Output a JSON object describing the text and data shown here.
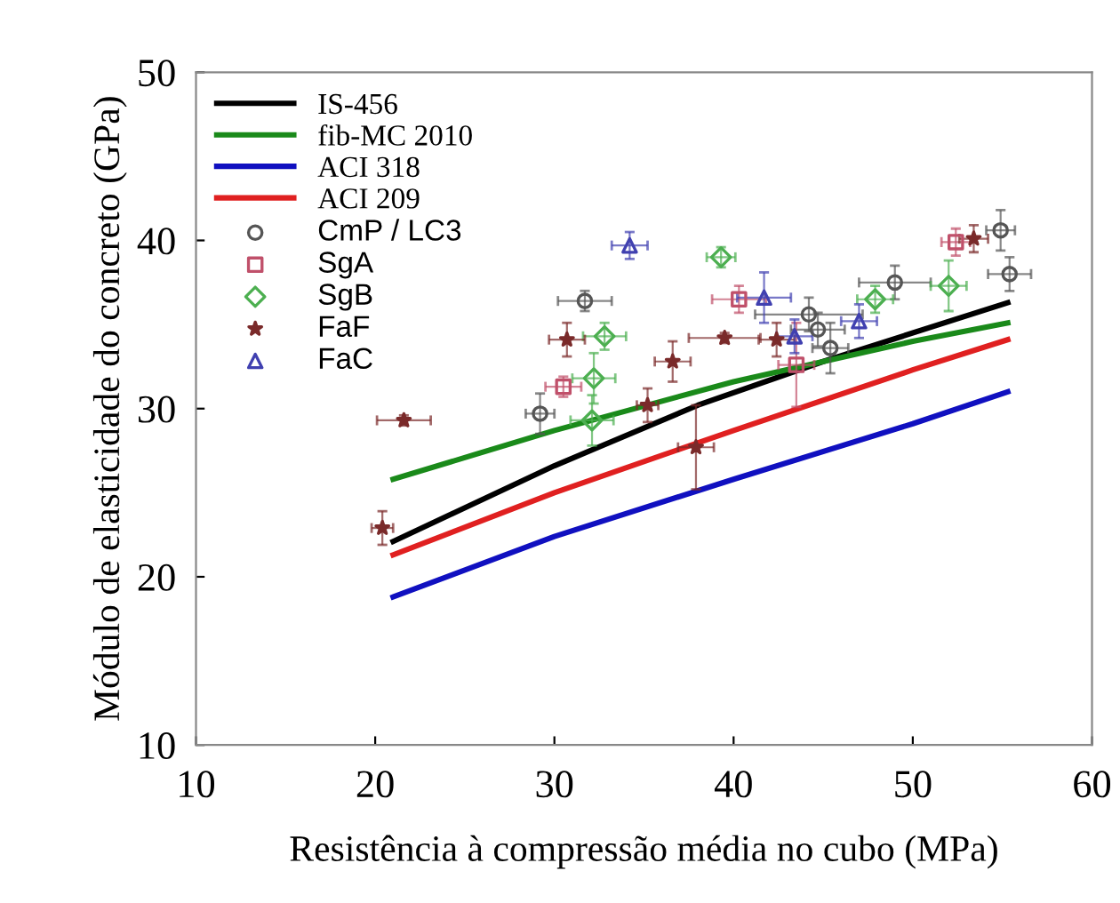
{
  "chart_data": {
    "type": "line",
    "xlabel": "Resistência à compressão média no cubo (MPa)",
    "ylabel": "Módulo de elasticidade do concreto (GPa)",
    "xlim": [
      10,
      60
    ],
    "ylim": [
      10,
      50
    ],
    "xticks": [
      10,
      20,
      30,
      40,
      50,
      60
    ],
    "yticks": [
      10,
      20,
      30,
      40,
      50
    ],
    "grid": false,
    "legend": "top left",
    "series": [
      {
        "name": "IS-456",
        "color": "#000000",
        "x": [
          21,
          30,
          38,
          45,
          55.3
        ],
        "values": [
          22.1,
          26.6,
          30.2,
          32.8,
          36.3
        ]
      },
      {
        "name": "fib-MC 2010",
        "color": "#1a8a1a",
        "x": [
          21,
          30,
          40,
          50,
          55.3
        ],
        "values": [
          25.8,
          28.7,
          31.6,
          34.0,
          35.1
        ]
      },
      {
        "name": "ACI 318",
        "color": "#1010c0",
        "x": [
          21,
          30,
          40,
          50,
          55.3
        ],
        "values": [
          18.8,
          22.4,
          25.8,
          29.1,
          31.0
        ]
      },
      {
        "name": "ACI 209",
        "color": "#e02020",
        "x": [
          21,
          30,
          40,
          50,
          55.3
        ],
        "values": [
          21.3,
          25.0,
          28.7,
          32.3,
          34.1
        ]
      },
      {
        "name": "CmP / LC3",
        "type": "scatter",
        "marker": "circle",
        "color": "#555555",
        "x": [
          29.2,
          31.7,
          44.2,
          44.7,
          45.4,
          49.0,
          54.9,
          55.4
        ],
        "values": [
          29.7,
          36.4,
          35.6,
          34.7,
          33.6,
          37.5,
          40.6,
          38.0
        ],
        "errors": [
          1.2,
          0.6,
          1,
          1,
          1.5,
          1,
          1.2,
          1
        ],
        "xerrors": [
          0.8,
          1.5,
          3,
          1.5,
          1,
          2,
          0.8,
          1.2
        ]
      },
      {
        "name": "SgA",
        "type": "scatter",
        "marker": "square",
        "color": "#c0506a",
        "x": [
          30.5,
          40.3,
          43.5,
          52.4
        ],
        "values": [
          31.3,
          36.5,
          32.6,
          39.9
        ],
        "errors": [
          0.6,
          0.8,
          2.5,
          0.8
        ],
        "xerrors": [
          1,
          1.5,
          1,
          0.8
        ]
      },
      {
        "name": "SgB",
        "type": "scatter",
        "marker": "diamond",
        "color": "#4caf50",
        "x": [
          32.8,
          32.2,
          32.1,
          39.3,
          47.9,
          52.0
        ],
        "values": [
          34.3,
          31.8,
          29.3,
          39.0,
          36.5,
          37.3
        ],
        "errors": [
          0.8,
          1.5,
          1.5,
          0.6,
          0.8,
          1.5
        ],
        "xerrors": [
          1.2,
          1.2,
          1.2,
          0.8,
          1,
          1
        ]
      },
      {
        "name": "FaF",
        "type": "scatter",
        "marker": "star",
        "color": "#7a2a2a",
        "x": [
          21.6,
          30.7,
          36.6,
          35.2,
          37.9,
          20.4,
          39.5,
          42.4,
          53.4
        ],
        "values": [
          29.3,
          34.1,
          32.8,
          30.2,
          27.7,
          22.9,
          34.2,
          34.1,
          40.1
        ],
        "errors": [
          0.3,
          1,
          1.2,
          1,
          2.5,
          1,
          0.3,
          1,
          0.8
        ],
        "xerrors": [
          1.5,
          1,
          1,
          0.6,
          1,
          0.6,
          2,
          1,
          0.8
        ]
      },
      {
        "name": "FaC",
        "type": "scatter",
        "marker": "triangle",
        "color": "#4040b0",
        "x": [
          34.2,
          41.7,
          43.4,
          47.0
        ],
        "values": [
          39.7,
          36.6,
          34.3,
          35.2
        ],
        "errors": [
          0.8,
          1.5,
          1,
          1
        ],
        "xerrors": [
          1,
          1.5,
          1,
          1
        ]
      }
    ]
  }
}
